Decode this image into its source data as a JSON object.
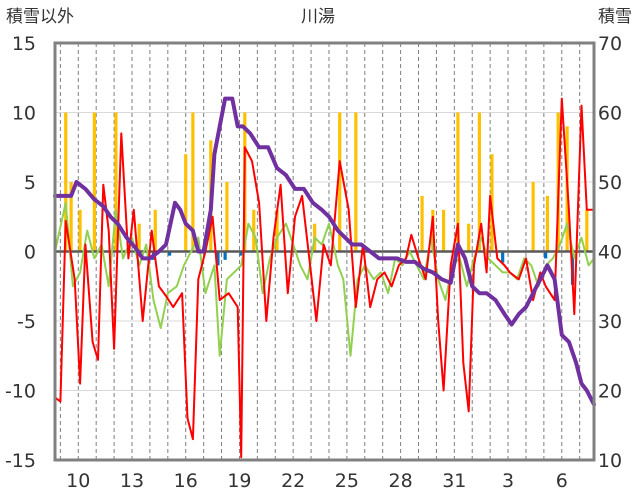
{
  "chart_data": {
    "type": "line",
    "title": "川湯",
    "y_left_label": "積雪以外",
    "y_right_label": "積雪",
    "y_left_lim": [
      -15,
      15
    ],
    "y_left_ticks": [
      "15",
      "10",
      "5",
      "0",
      "-5",
      "-10",
      "-15"
    ],
    "y_right_lim": [
      10,
      70
    ],
    "y_right_ticks": [
      "70",
      "60",
      "50",
      "40",
      "30",
      "20",
      "10"
    ],
    "x_ticks": [
      "10",
      "13",
      "16",
      "19",
      "22",
      "25",
      "28",
      "31",
      "3",
      "6"
    ],
    "x_range_days": [
      8.7,
      38.8
    ],
    "colors": {
      "temp_max": "#ff0000",
      "temp_min": "#92d050",
      "snowfall": "#ffc000",
      "precip": "#0070c0",
      "snow_depth": "#7030a0",
      "zero_line": "#595959",
      "frame": "#808080",
      "grid": "#7f7f7f"
    },
    "series": [
      {
        "name": "snowfall",
        "axis": "left",
        "kind": "bar",
        "points": [
          [
            9.3,
            10
          ],
          [
            9.6,
            5
          ],
          [
            10.1,
            3
          ],
          [
            10.9,
            10
          ],
          [
            12.1,
            10
          ],
          [
            13.4,
            2
          ],
          [
            14.3,
            3
          ],
          [
            16.0,
            7
          ],
          [
            16.4,
            10
          ],
          [
            17.4,
            8
          ],
          [
            18.3,
            5
          ],
          [
            19.3,
            10
          ],
          [
            19.8,
            3
          ],
          [
            21.1,
            3
          ],
          [
            23.2,
            2
          ],
          [
            24.6,
            10
          ],
          [
            25.5,
            10
          ],
          [
            29.2,
            4
          ],
          [
            29.8,
            3
          ],
          [
            30.4,
            3
          ],
          [
            31.2,
            10
          ],
          [
            31.8,
            2
          ],
          [
            32.4,
            10
          ],
          [
            33.1,
            7
          ],
          [
            35.4,
            5
          ],
          [
            36.2,
            4
          ],
          [
            36.8,
            10
          ],
          [
            37.3,
            9
          ],
          [
            38.4,
            3
          ]
        ]
      },
      {
        "name": "precip",
        "axis": "left",
        "kind": "bar",
        "points": [
          [
            14.2,
            -0.6
          ],
          [
            15.1,
            -0.3
          ],
          [
            17.8,
            -1.0
          ],
          [
            18.2,
            -0.6
          ],
          [
            19.1,
            -0.3
          ],
          [
            33.7,
            -0.8
          ],
          [
            36.1,
            -0.5
          ],
          [
            37.6,
            -2.4
          ]
        ]
      },
      {
        "name": "temp_max",
        "axis": "left",
        "kind": "line",
        "points": [
          [
            8.7,
            -10.5
          ],
          [
            9.0,
            -10.8
          ],
          [
            9.3,
            2.2
          ],
          [
            9.8,
            -2.0
          ],
          [
            10.1,
            -9.5
          ],
          [
            10.4,
            0.5
          ],
          [
            10.8,
            -6.5
          ],
          [
            11.1,
            -7.8
          ],
          [
            11.4,
            4.8
          ],
          [
            11.7,
            1.5
          ],
          [
            12.0,
            -7.0
          ],
          [
            12.4,
            8.5
          ],
          [
            12.8,
            -0.5
          ],
          [
            13.1,
            3.0
          ],
          [
            13.6,
            -5.0
          ],
          [
            14.1,
            1.5
          ],
          [
            14.5,
            -2.5
          ],
          [
            14.9,
            -3.2
          ],
          [
            15.3,
            -4.0
          ],
          [
            15.8,
            -3.0
          ],
          [
            16.1,
            -12.0
          ],
          [
            16.4,
            -13.5
          ],
          [
            16.7,
            -2.0
          ],
          [
            17.1,
            0.0
          ],
          [
            17.5,
            2.5
          ],
          [
            17.9,
            -3.5
          ],
          [
            18.4,
            -3.0
          ],
          [
            18.9,
            -4.0
          ],
          [
            19.1,
            -14.8
          ],
          [
            19.3,
            7.5
          ],
          [
            19.7,
            6.5
          ],
          [
            20.1,
            3.5
          ],
          [
            20.5,
            -5.0
          ],
          [
            20.9,
            1.0
          ],
          [
            21.3,
            4.8
          ],
          [
            21.7,
            -3.0
          ],
          [
            22.1,
            2.5
          ],
          [
            22.5,
            4.0
          ],
          [
            22.9,
            -0.5
          ],
          [
            23.3,
            -5.0
          ],
          [
            23.7,
            0.5
          ],
          [
            24.1,
            -1.0
          ],
          [
            24.6,
            6.5
          ],
          [
            25.1,
            3.0
          ],
          [
            25.5,
            -4.0
          ],
          [
            25.9,
            0.5
          ],
          [
            26.3,
            -4.0
          ],
          [
            26.7,
            -2.0
          ],
          [
            27.1,
            -1.5
          ],
          [
            27.5,
            -2.5
          ],
          [
            27.9,
            -1.0
          ],
          [
            28.3,
            -0.5
          ],
          [
            28.6,
            1.2
          ],
          [
            29.0,
            -0.5
          ],
          [
            29.4,
            -2.0
          ],
          [
            29.8,
            2.5
          ],
          [
            30.1,
            -5.0
          ],
          [
            30.4,
            -10.0
          ],
          [
            30.8,
            -1.0
          ],
          [
            31.2,
            2.0
          ],
          [
            31.5,
            -8.0
          ],
          [
            31.8,
            -11.5
          ],
          [
            32.1,
            -1.0
          ],
          [
            32.5,
            2.0
          ],
          [
            32.8,
            -1.5
          ],
          [
            33.0,
            4.0
          ],
          [
            33.4,
            -0.5
          ],
          [
            33.8,
            -1.0
          ],
          [
            34.1,
            -1.5
          ],
          [
            34.6,
            -2.0
          ],
          [
            35.0,
            -0.5
          ],
          [
            35.4,
            -3.5
          ],
          [
            35.8,
            -1.5
          ],
          [
            36.1,
            -2.5
          ],
          [
            36.6,
            -3.5
          ],
          [
            37.0,
            11.0
          ],
          [
            37.4,
            3.0
          ],
          [
            37.7,
            -4.5
          ],
          [
            38.1,
            10.5
          ],
          [
            38.4,
            3.0
          ],
          [
            38.8,
            3.0
          ]
        ]
      },
      {
        "name": "temp_min",
        "axis": "left",
        "kind": "line",
        "points": [
          [
            8.7,
            0.0
          ],
          [
            9.3,
            3.5
          ],
          [
            9.7,
            -2.5
          ],
          [
            10.1,
            -1.5
          ],
          [
            10.5,
            1.5
          ],
          [
            10.9,
            -0.5
          ],
          [
            11.3,
            0.5
          ],
          [
            11.7,
            -2.5
          ],
          [
            12.1,
            3.0
          ],
          [
            12.5,
            -0.5
          ],
          [
            13.0,
            1.0
          ],
          [
            13.4,
            -1.0
          ],
          [
            13.8,
            0.5
          ],
          [
            14.2,
            -3.5
          ],
          [
            14.6,
            -5.5
          ],
          [
            15.0,
            -3.0
          ],
          [
            15.5,
            -2.5
          ],
          [
            15.9,
            -1.0
          ],
          [
            16.3,
            0.0
          ],
          [
            16.7,
            1.0
          ],
          [
            17.1,
            -3.0
          ],
          [
            17.6,
            -1.0
          ],
          [
            17.9,
            -7.5
          ],
          [
            18.3,
            -2.0
          ],
          [
            18.7,
            -1.5
          ],
          [
            19.1,
            -1.0
          ],
          [
            19.5,
            2.0
          ],
          [
            19.9,
            1.0
          ],
          [
            20.3,
            -3.0
          ],
          [
            20.7,
            -0.5
          ],
          [
            21.1,
            1.0
          ],
          [
            21.6,
            2.0
          ],
          [
            22.0,
            0.5
          ],
          [
            22.4,
            -1.0
          ],
          [
            22.8,
            -2.0
          ],
          [
            23.2,
            1.0
          ],
          [
            23.6,
            0.5
          ],
          [
            24.0,
            2.0
          ],
          [
            24.5,
            -1.0
          ],
          [
            24.8,
            -2.0
          ],
          [
            25.2,
            -7.5
          ],
          [
            25.6,
            -2.0
          ],
          [
            26.0,
            -1.0
          ],
          [
            26.5,
            -2.0
          ],
          [
            26.9,
            -1.5
          ],
          [
            27.3,
            -3.0
          ],
          [
            27.7,
            -0.5
          ],
          [
            28.1,
            -1.0
          ],
          [
            28.5,
            0.0
          ],
          [
            28.9,
            -1.0
          ],
          [
            29.3,
            -2.0
          ],
          [
            29.7,
            1.0
          ],
          [
            30.1,
            -2.0
          ],
          [
            30.5,
            -3.5
          ],
          [
            30.9,
            -1.0
          ],
          [
            31.3,
            -0.5
          ],
          [
            31.7,
            -2.5
          ],
          [
            32.1,
            -0.5
          ],
          [
            32.5,
            1.0
          ],
          [
            32.9,
            -0.5
          ],
          [
            33.3,
            -1.0
          ],
          [
            33.7,
            -1.5
          ],
          [
            34.1,
            -1.5
          ],
          [
            34.5,
            -2.0
          ],
          [
            34.9,
            -0.5
          ],
          [
            35.3,
            -1.0
          ],
          [
            35.7,
            -2.5
          ],
          [
            36.1,
            -1.0
          ],
          [
            36.5,
            -0.5
          ],
          [
            36.9,
            0.5
          ],
          [
            37.3,
            2.0
          ],
          [
            37.7,
            -0.5
          ],
          [
            38.1,
            1.0
          ],
          [
            38.5,
            -1.0
          ],
          [
            38.8,
            -0.5
          ]
        ]
      },
      {
        "name": "snow_depth",
        "axis": "right",
        "kind": "step",
        "points": [
          [
            8.7,
            48.0
          ],
          [
            9.6,
            48.0
          ],
          [
            9.9,
            50.0
          ],
          [
            10.4,
            49.0
          ],
          [
            10.9,
            47.5
          ],
          [
            11.4,
            46.5
          ],
          [
            11.8,
            45.0
          ],
          [
            12.2,
            44.0
          ],
          [
            12.7,
            42.0
          ],
          [
            13.2,
            40.5
          ],
          [
            13.6,
            39.0
          ],
          [
            14.0,
            39.0
          ],
          [
            14.5,
            40.0
          ],
          [
            14.9,
            41.0
          ],
          [
            15.4,
            47.0
          ],
          [
            15.7,
            46.0
          ],
          [
            16.0,
            44.0
          ],
          [
            16.4,
            43.0
          ],
          [
            16.7,
            40.0
          ],
          [
            17.0,
            40.0
          ],
          [
            17.4,
            46.0
          ],
          [
            17.6,
            54.0
          ],
          [
            17.9,
            58.0
          ],
          [
            18.2,
            62.0
          ],
          [
            18.6,
            62.0
          ],
          [
            18.9,
            58.0
          ],
          [
            19.2,
            58.0
          ],
          [
            19.6,
            57.0
          ],
          [
            20.1,
            55.0
          ],
          [
            20.6,
            55.0
          ],
          [
            21.1,
            52.0
          ],
          [
            21.6,
            51.0
          ],
          [
            22.1,
            49.0
          ],
          [
            22.6,
            49.0
          ],
          [
            23.1,
            47.0
          ],
          [
            23.6,
            46.0
          ],
          [
            24.0,
            45.0
          ],
          [
            24.5,
            43.0
          ],
          [
            24.9,
            42.0
          ],
          [
            25.3,
            41.0
          ],
          [
            25.8,
            41.0
          ],
          [
            26.3,
            40.0
          ],
          [
            26.8,
            39.0
          ],
          [
            27.3,
            39.0
          ],
          [
            27.8,
            39.0
          ],
          [
            28.3,
            38.5
          ],
          [
            28.8,
            38.5
          ],
          [
            29.3,
            37.5
          ],
          [
            29.8,
            37.0
          ],
          [
            30.3,
            36.0
          ],
          [
            30.8,
            35.5
          ],
          [
            31.2,
            41.0
          ],
          [
            31.6,
            39.0
          ],
          [
            32.0,
            35.0
          ],
          [
            32.4,
            34.0
          ],
          [
            32.8,
            34.0
          ],
          [
            33.3,
            33.0
          ],
          [
            33.8,
            31.0
          ],
          [
            34.2,
            29.5
          ],
          [
            34.6,
            31.0
          ],
          [
            35.0,
            32.0
          ],
          [
            35.4,
            34.0
          ],
          [
            35.8,
            36.0
          ],
          [
            36.2,
            38.0
          ],
          [
            36.6,
            36.0
          ],
          [
            37.0,
            28.0
          ],
          [
            37.4,
            27.0
          ],
          [
            37.8,
            24.0
          ],
          [
            38.1,
            21.0
          ],
          [
            38.4,
            20.0
          ],
          [
            38.8,
            18.0
          ]
        ]
      }
    ]
  }
}
